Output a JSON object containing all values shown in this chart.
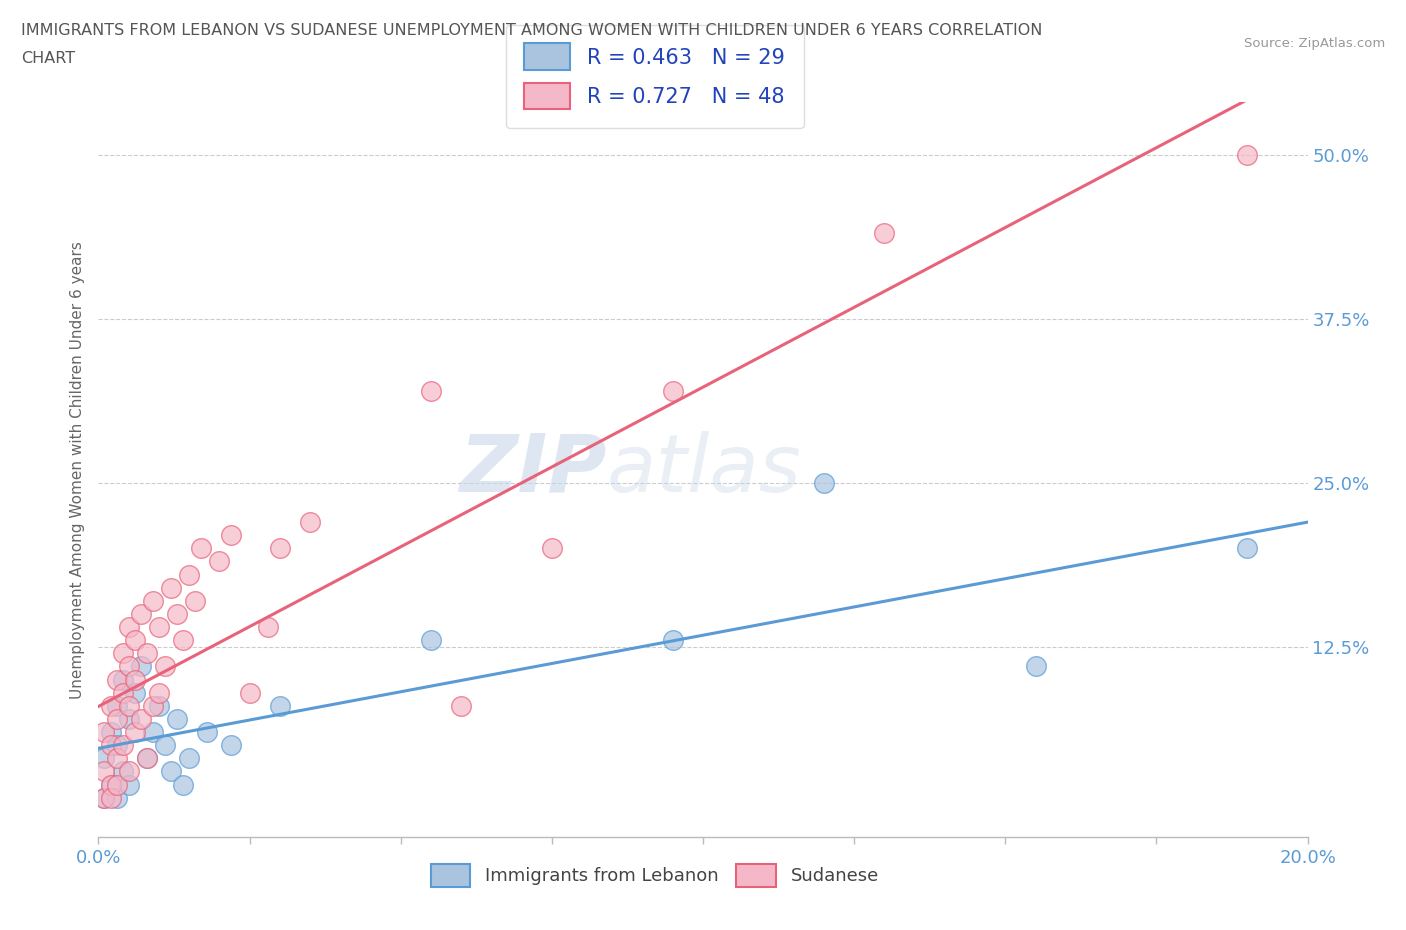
{
  "title_line1": "IMMIGRANTS FROM LEBANON VS SUDANESE UNEMPLOYMENT AMONG WOMEN WITH CHILDREN UNDER 6 YEARS CORRELATION",
  "title_line2": "CHART",
  "source": "Source: ZipAtlas.com",
  "ylabel": "Unemployment Among Women with Children Under 6 years",
  "yticks": [
    0.0,
    0.125,
    0.25,
    0.375,
    0.5
  ],
  "ytick_labels": [
    "",
    "12.5%",
    "25.0%",
    "37.5%",
    "50.0%"
  ],
  "xlim": [
    0.0,
    0.2
  ],
  "ylim": [
    -0.02,
    0.54
  ],
  "lebanon_R": 0.463,
  "lebanon_N": 29,
  "sudanese_R": 0.727,
  "sudanese_N": 48,
  "lebanon_color": "#aac4e0",
  "lebanon_line_color": "#5b9bd5",
  "sudanese_color": "#f4b8c8",
  "sudanese_line_color": "#e8637a",
  "lebanon_x": [
    0.001,
    0.001,
    0.002,
    0.002,
    0.003,
    0.003,
    0.003,
    0.004,
    0.004,
    0.005,
    0.005,
    0.006,
    0.007,
    0.008,
    0.009,
    0.01,
    0.011,
    0.012,
    0.013,
    0.014,
    0.015,
    0.018,
    0.022,
    0.03,
    0.055,
    0.095,
    0.12,
    0.155,
    0.19
  ],
  "lebanon_y": [
    0.04,
    0.01,
    0.06,
    0.02,
    0.08,
    0.05,
    0.01,
    0.1,
    0.03,
    0.07,
    0.02,
    0.09,
    0.11,
    0.04,
    0.06,
    0.08,
    0.05,
    0.03,
    0.07,
    0.02,
    0.04,
    0.06,
    0.05,
    0.08,
    0.13,
    0.13,
    0.25,
    0.11,
    0.2
  ],
  "sudanese_x": [
    0.001,
    0.001,
    0.001,
    0.002,
    0.002,
    0.002,
    0.002,
    0.003,
    0.003,
    0.003,
    0.003,
    0.004,
    0.004,
    0.004,
    0.005,
    0.005,
    0.005,
    0.005,
    0.006,
    0.006,
    0.006,
    0.007,
    0.007,
    0.008,
    0.008,
    0.009,
    0.009,
    0.01,
    0.01,
    0.011,
    0.012,
    0.013,
    0.014,
    0.015,
    0.016,
    0.017,
    0.02,
    0.022,
    0.025,
    0.028,
    0.03,
    0.035,
    0.055,
    0.06,
    0.075,
    0.095,
    0.13,
    0.19
  ],
  "sudanese_y": [
    0.06,
    0.03,
    0.01,
    0.08,
    0.05,
    0.02,
    0.01,
    0.1,
    0.07,
    0.04,
    0.02,
    0.12,
    0.09,
    0.05,
    0.14,
    0.11,
    0.08,
    0.03,
    0.13,
    0.1,
    0.06,
    0.15,
    0.07,
    0.12,
    0.04,
    0.16,
    0.08,
    0.14,
    0.09,
    0.11,
    0.17,
    0.15,
    0.13,
    0.18,
    0.16,
    0.2,
    0.19,
    0.21,
    0.09,
    0.14,
    0.2,
    0.22,
    0.32,
    0.08,
    0.2,
    0.32,
    0.44,
    0.5
  ],
  "watermark_zip": "ZIP",
  "watermark_atlas": "atlas",
  "bg_color": "#ffffff",
  "grid_color": "#cccccc",
  "title_color": "#555555",
  "tick_color": "#5b9bd5",
  "legend_blue_label": "R = 0.463   N = 29",
  "legend_pink_label": "R = 0.727   N = 48",
  "legend_bottom_leb": "Immigrants from Lebanon",
  "legend_bottom_sud": "Sudanese"
}
